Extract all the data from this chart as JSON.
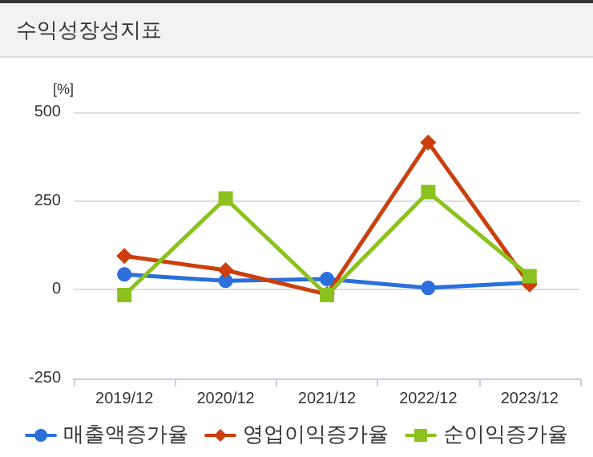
{
  "chart_data": {
    "type": "line",
    "title": "수익성장성지표",
    "ylabel": "[%]",
    "categories": [
      "2019/12",
      "2020/12",
      "2021/12",
      "2022/12",
      "2023/12"
    ],
    "series": [
      {
        "name": "매출액증가율",
        "color": "#2a6fdb",
        "marker": "circle",
        "values": [
          43,
          25,
          30,
          5,
          20
        ]
      },
      {
        "name": "영업이익증가율",
        "color": "#cc3f0c",
        "marker": "diamond",
        "values": [
          95,
          55,
          -13,
          415,
          15
        ]
      },
      {
        "name": "순이익증가율",
        "color": "#8cc21d",
        "marker": "square",
        "values": [
          -15,
          257,
          -15,
          275,
          38
        ]
      }
    ],
    "ylim": [
      -250,
      500
    ],
    "yticks": [
      -250,
      0,
      250,
      500
    ],
    "grid": "y",
    "legend": "bottom"
  }
}
